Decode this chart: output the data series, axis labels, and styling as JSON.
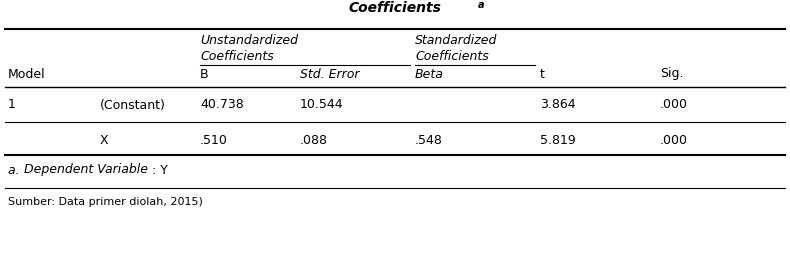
{
  "title": "Coefficients",
  "title_superscript": "a",
  "rows": [
    [
      "1",
      "(Constant)",
      "40.738",
      "10.544",
      "",
      "3.864",
      ".000"
    ],
    [
      "",
      "X",
      ".510",
      ".088",
      ".548",
      "5.819",
      ".000"
    ]
  ],
  "footnote1a": "a. ",
  "footnote1b": "Dependent Variable",
  "footnote1c": ": Y",
  "footnote2": "Sumber: Data primer diolah, 2015)",
  "bg_color": "#ffffff",
  "text_color": "#000000"
}
